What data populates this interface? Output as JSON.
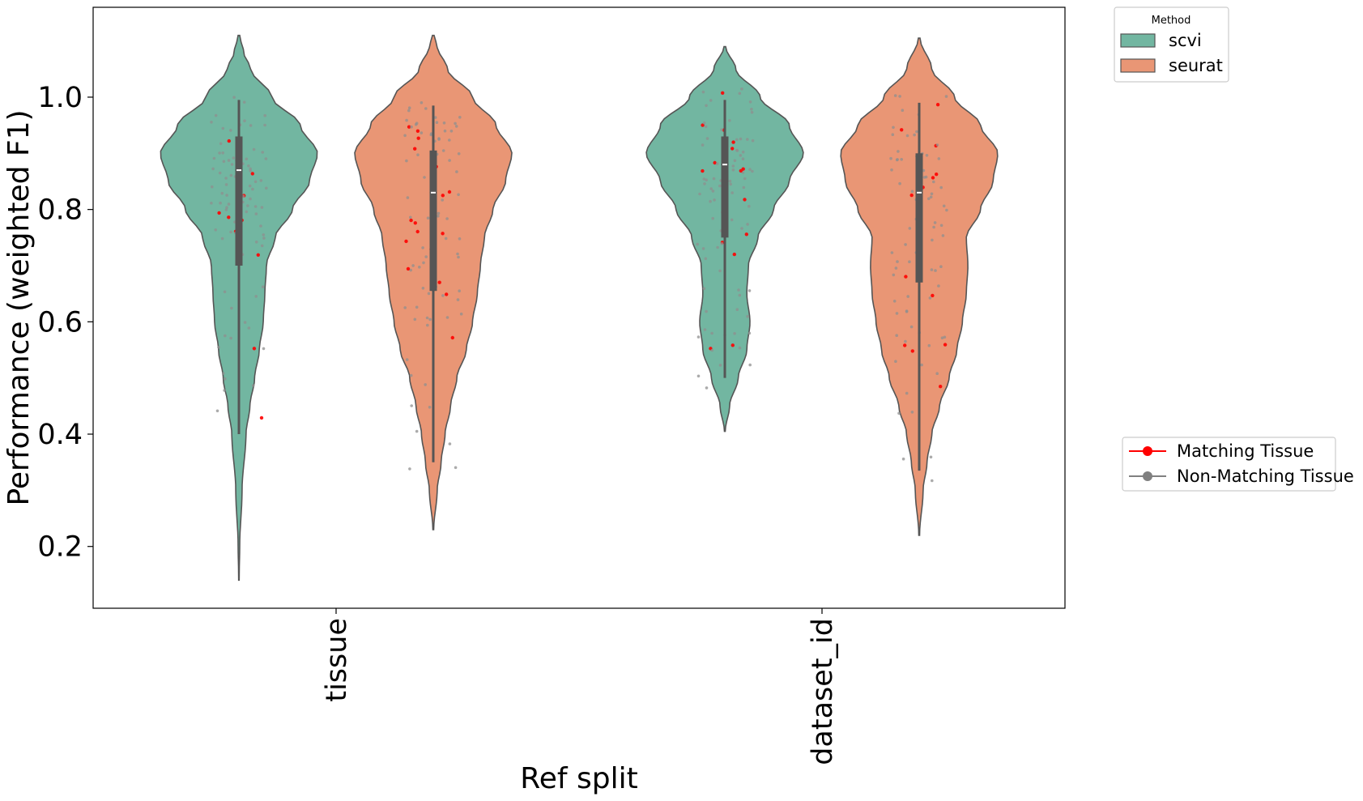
{
  "chart_data": {
    "type": "violin",
    "title": "",
    "xlabel": "Ref split",
    "ylabel": "Performance (weighted F1)",
    "ylim": [
      0.09,
      1.16
    ],
    "y_ticks": [
      0.2,
      0.4,
      0.6,
      0.8,
      1.0
    ],
    "y_tick_labels": [
      "0.2",
      "0.4",
      "0.6",
      "0.8",
      "1.0"
    ],
    "categories": [
      "tissue",
      "dataset_id"
    ],
    "legend_method": {
      "title": "Method",
      "position": "outside-top-right",
      "entries": [
        {
          "name": "scvi",
          "color": "#72b6a1"
        },
        {
          "name": "seurat",
          "color": "#e99675"
        }
      ]
    },
    "legend_match": {
      "position": "outside-right",
      "entries": [
        {
          "name": "Matching Tissue",
          "color": "#ff0000"
        },
        {
          "name": "Non-Matching Tissue",
          "color": "#808080"
        }
      ]
    },
    "series": [
      {
        "name": "scvi",
        "category": "tissue",
        "color": "#72b6a1",
        "min": 0.14,
        "max": 1.11,
        "box": {
          "q1": 0.7,
          "median": 0.87,
          "q3": 0.93,
          "whisker_low": 0.4,
          "whisker_high": 0.995
        },
        "density": [
          [
            0.14,
            0.003
          ],
          [
            0.2,
            0.01
          ],
          [
            0.3,
            0.04
          ],
          [
            0.4,
            0.09
          ],
          [
            0.45,
            0.14
          ],
          [
            0.5,
            0.2
          ],
          [
            0.55,
            0.26
          ],
          [
            0.6,
            0.31
          ],
          [
            0.65,
            0.33
          ],
          [
            0.7,
            0.35
          ],
          [
            0.75,
            0.46
          ],
          [
            0.8,
            0.68
          ],
          [
            0.85,
            0.9
          ],
          [
            0.9,
            1.0
          ],
          [
            0.95,
            0.78
          ],
          [
            1.0,
            0.42
          ],
          [
            1.05,
            0.15
          ],
          [
            1.08,
            0.06
          ],
          [
            1.11,
            0.01
          ]
        ]
      },
      {
        "name": "seurat",
        "category": "tissue",
        "color": "#e99675",
        "min": 0.23,
        "max": 1.11,
        "box": {
          "q1": 0.655,
          "median": 0.83,
          "q3": 0.905,
          "whisker_low": 0.35,
          "whisker_high": 0.985
        },
        "density": [
          [
            0.23,
            0.005
          ],
          [
            0.3,
            0.05
          ],
          [
            0.35,
            0.1
          ],
          [
            0.4,
            0.15
          ],
          [
            0.45,
            0.22
          ],
          [
            0.5,
            0.3
          ],
          [
            0.55,
            0.42
          ],
          [
            0.6,
            0.5
          ],
          [
            0.65,
            0.56
          ],
          [
            0.7,
            0.6
          ],
          [
            0.75,
            0.65
          ],
          [
            0.8,
            0.76
          ],
          [
            0.85,
            0.92
          ],
          [
            0.9,
            1.0
          ],
          [
            0.95,
            0.8
          ],
          [
            1.0,
            0.5
          ],
          [
            1.05,
            0.18
          ],
          [
            1.09,
            0.05
          ],
          [
            1.11,
            0.01
          ]
        ]
      },
      {
        "name": "scvi",
        "category": "dataset_id",
        "color": "#72b6a1",
        "min": 0.405,
        "max": 1.09,
        "box": {
          "q1": 0.75,
          "median": 0.88,
          "q3": 0.93,
          "whisker_low": 0.5,
          "whisker_high": 0.995
        },
        "density": [
          [
            0.405,
            0.005
          ],
          [
            0.45,
            0.06
          ],
          [
            0.5,
            0.17
          ],
          [
            0.55,
            0.28
          ],
          [
            0.6,
            0.32
          ],
          [
            0.65,
            0.28
          ],
          [
            0.7,
            0.3
          ],
          [
            0.75,
            0.42
          ],
          [
            0.8,
            0.62
          ],
          [
            0.85,
            0.82
          ],
          [
            0.9,
            1.0
          ],
          [
            0.95,
            0.82
          ],
          [
            1.0,
            0.45
          ],
          [
            1.05,
            0.14
          ],
          [
            1.09,
            0.01
          ]
        ]
      },
      {
        "name": "seurat",
        "category": "dataset_id",
        "color": "#e99675",
        "min": 0.22,
        "max": 1.105,
        "box": {
          "q1": 0.67,
          "median": 0.83,
          "q3": 0.9,
          "whisker_low": 0.335,
          "whisker_high": 0.99
        },
        "density": [
          [
            0.22,
            0.005
          ],
          [
            0.3,
            0.05
          ],
          [
            0.35,
            0.1
          ],
          [
            0.4,
            0.16
          ],
          [
            0.45,
            0.26
          ],
          [
            0.5,
            0.38
          ],
          [
            0.55,
            0.48
          ],
          [
            0.6,
            0.55
          ],
          [
            0.65,
            0.6
          ],
          [
            0.7,
            0.62
          ],
          [
            0.75,
            0.6
          ],
          [
            0.8,
            0.78
          ],
          [
            0.85,
            0.94
          ],
          [
            0.9,
            1.0
          ],
          [
            0.95,
            0.78
          ],
          [
            1.0,
            0.45
          ],
          [
            1.05,
            0.16
          ],
          [
            1.105,
            0.01
          ]
        ]
      }
    ]
  }
}
